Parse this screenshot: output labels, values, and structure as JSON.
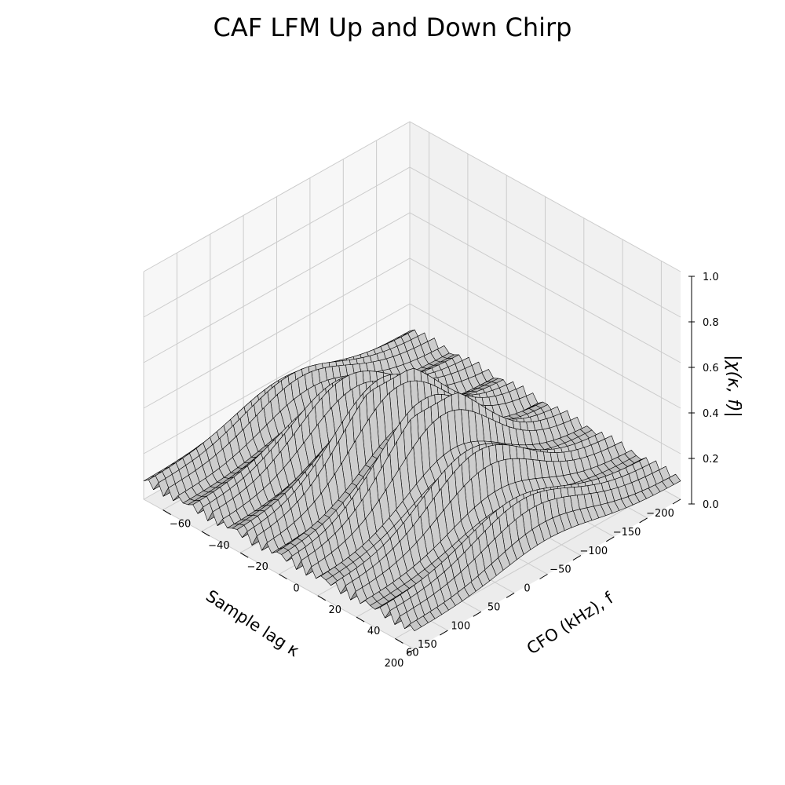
{
  "chart_data": {
    "type": "surface",
    "title": "CAF LFM Up and Down Chirp",
    "xlabel": "Sample lag κ",
    "ylabel": "CFO (kHz), f",
    "zlabel": "|χ(κ, f)|",
    "x_range": [
      -200,
      200
    ],
    "y_range": [
      -70,
      70
    ],
    "z_range": [
      0,
      1.0
    ],
    "x_ticks": [
      "200",
      "150",
      "100",
      "50",
      "0",
      "−50",
      "−100",
      "−150",
      "−200"
    ],
    "y_ticks": [
      "−60",
      "−40",
      "−20",
      "0",
      "20",
      "40",
      "60"
    ],
    "z_ticks": [
      "0.0",
      "0.2",
      "0.4",
      "0.6",
      "0.8",
      "1.0"
    ],
    "surface": {
      "x_count": 40,
      "y_count": 56,
      "peak": 0.47,
      "ridge_spacing_khz": 5.7,
      "base_level": 0.06
    },
    "colors": {
      "surface": "#b3b3b3",
      "edge": "#000000",
      "pane_left": "#f7f7f7",
      "pane_right": "#f1f1f1",
      "pane_floor": "#ececec",
      "grid": "#cccccc"
    },
    "grid": true
  }
}
